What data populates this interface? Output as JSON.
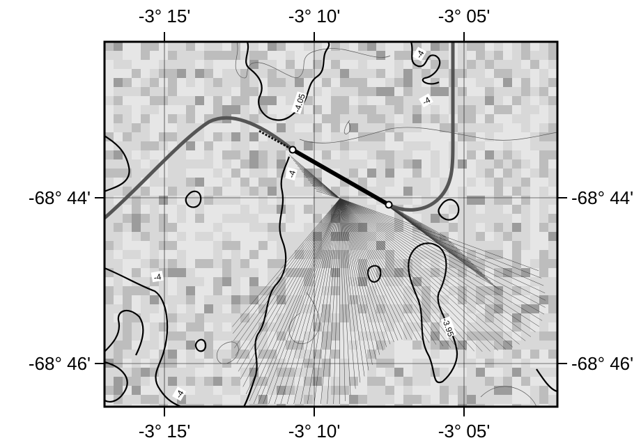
{
  "map": {
    "longitude_labels": [
      "-3° 15'",
      "-3° 10'",
      "-3° 05'"
    ],
    "latitude_labels": [
      "-68° 44'",
      "-68° 46'"
    ],
    "contour_labels": [
      "-4.05",
      "-4",
      "-4",
      "-4",
      "-3.95",
      "-4",
      "-4"
    ],
    "colors": {
      "background": "#d8d8d8",
      "light_cell": "#e6e6e6",
      "mid_cell": "#bdbdbd",
      "dark_cell": "#9c9c9c",
      "track": "#555555",
      "contour": "#000000",
      "ray": "#333333"
    }
  }
}
